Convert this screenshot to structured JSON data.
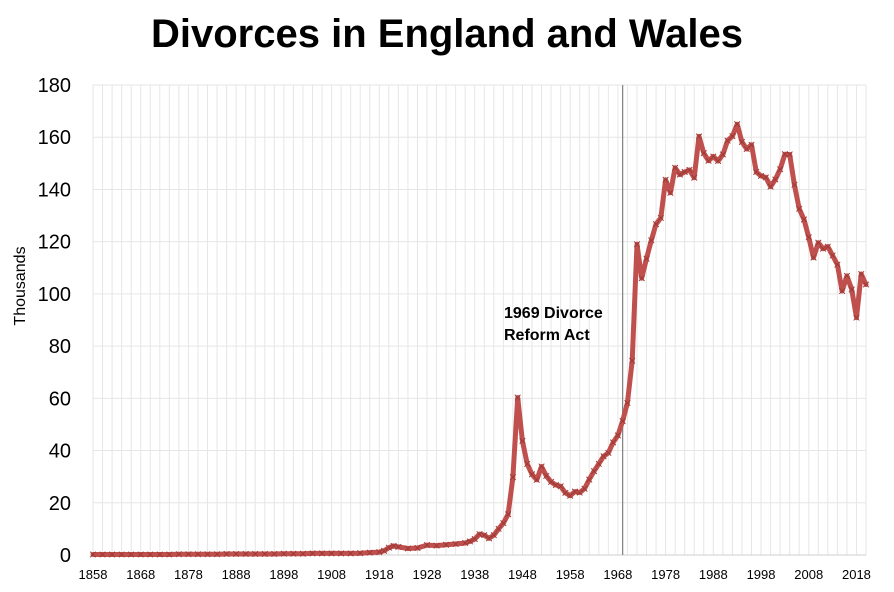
{
  "chart_data": {
    "type": "line",
    "title": "Divorces in England and Wales",
    "ylabel": "Thousands",
    "xlabel": "",
    "xlim": [
      1858,
      2020
    ],
    "ylim": [
      0,
      180
    ],
    "y_ticks": [
      0,
      20,
      40,
      60,
      80,
      100,
      120,
      140,
      160,
      180
    ],
    "x_tick_labels": [
      1858,
      1868,
      1878,
      1888,
      1898,
      1908,
      1918,
      1928,
      1938,
      1948,
      1958,
      1968,
      1978,
      1988,
      1998,
      2008,
      2018
    ],
    "grid": true,
    "line_color": "#c0504d",
    "annotation": {
      "lines": [
        "1969 Divorce",
        "Reform Act"
      ],
      "x": 1969
    },
    "series": [
      {
        "points": [
          [
            1858,
            0.2
          ],
          [
            1860,
            0.2
          ],
          [
            1862,
            0.2
          ],
          [
            1864,
            0.2
          ],
          [
            1866,
            0.2
          ],
          [
            1868,
            0.2
          ],
          [
            1870,
            0.2
          ],
          [
            1872,
            0.2
          ],
          [
            1874,
            0.2
          ],
          [
            1876,
            0.3
          ],
          [
            1878,
            0.3
          ],
          [
            1880,
            0.3
          ],
          [
            1882,
            0.3
          ],
          [
            1884,
            0.3
          ],
          [
            1886,
            0.4
          ],
          [
            1888,
            0.4
          ],
          [
            1890,
            0.4
          ],
          [
            1892,
            0.4
          ],
          [
            1894,
            0.4
          ],
          [
            1896,
            0.4
          ],
          [
            1898,
            0.5
          ],
          [
            1900,
            0.5
          ],
          [
            1902,
            0.5
          ],
          [
            1904,
            0.6
          ],
          [
            1906,
            0.6
          ],
          [
            1908,
            0.6
          ],
          [
            1910,
            0.6
          ],
          [
            1912,
            0.6
          ],
          [
            1914,
            0.7
          ],
          [
            1916,
            0.9
          ],
          [
            1918,
            1.1
          ],
          [
            1919,
            1.6
          ],
          [
            1920,
            2.8
          ],
          [
            1921,
            3.5
          ],
          [
            1922,
            3.1
          ],
          [
            1924,
            2.5
          ],
          [
            1926,
            2.7
          ],
          [
            1928,
            3.8
          ],
          [
            1930,
            3.6
          ],
          [
            1932,
            3.9
          ],
          [
            1934,
            4.2
          ],
          [
            1936,
            4.6
          ],
          [
            1937,
            5.2
          ],
          [
            1938,
            6.1
          ],
          [
            1939,
            8.0
          ],
          [
            1940,
            7.6
          ],
          [
            1941,
            6.4
          ],
          [
            1942,
            7.6
          ],
          [
            1943,
            10.0
          ],
          [
            1944,
            12.2
          ],
          [
            1945,
            15.6
          ],
          [
            1946,
            29.8
          ],
          [
            1947,
            60.3
          ],
          [
            1948,
            43.7
          ],
          [
            1949,
            34.9
          ],
          [
            1950,
            30.9
          ],
          [
            1951,
            28.8
          ],
          [
            1952,
            33.9
          ],
          [
            1953,
            30.3
          ],
          [
            1954,
            28.0
          ],
          [
            1955,
            26.8
          ],
          [
            1956,
            26.3
          ],
          [
            1957,
            23.8
          ],
          [
            1958,
            22.7
          ],
          [
            1959,
            24.3
          ],
          [
            1960,
            23.9
          ],
          [
            1961,
            25.4
          ],
          [
            1962,
            28.9
          ],
          [
            1963,
            32.1
          ],
          [
            1964,
            34.9
          ],
          [
            1965,
            37.8
          ],
          [
            1966,
            39.1
          ],
          [
            1967,
            43.1
          ],
          [
            1968,
            45.8
          ],
          [
            1969,
            51.3
          ],
          [
            1970,
            58.2
          ],
          [
            1971,
            74.4
          ],
          [
            1972,
            119.0
          ],
          [
            1973,
            106.0
          ],
          [
            1974,
            113.5
          ],
          [
            1975,
            120.5
          ],
          [
            1976,
            126.7
          ],
          [
            1977,
            129.1
          ],
          [
            1978,
            143.7
          ],
          [
            1979,
            138.7
          ],
          [
            1980,
            148.3
          ],
          [
            1981,
            145.7
          ],
          [
            1982,
            146.7
          ],
          [
            1983,
            147.5
          ],
          [
            1984,
            144.5
          ],
          [
            1985,
            160.3
          ],
          [
            1986,
            153.9
          ],
          [
            1987,
            151.0
          ],
          [
            1988,
            152.6
          ],
          [
            1989,
            150.9
          ],
          [
            1990,
            153.4
          ],
          [
            1991,
            158.7
          ],
          [
            1992,
            160.4
          ],
          [
            1993,
            165.0
          ],
          [
            1994,
            158.2
          ],
          [
            1995,
            155.5
          ],
          [
            1996,
            157.1
          ],
          [
            1997,
            146.7
          ],
          [
            1998,
            145.2
          ],
          [
            1999,
            144.6
          ],
          [
            2000,
            141.1
          ],
          [
            2001,
            143.8
          ],
          [
            2002,
            147.7
          ],
          [
            2003,
            153.5
          ],
          [
            2004,
            153.4
          ],
          [
            2005,
            141.8
          ],
          [
            2006,
            132.6
          ],
          [
            2007,
            128.5
          ],
          [
            2008,
            121.7
          ],
          [
            2009,
            113.9
          ],
          [
            2010,
            119.6
          ],
          [
            2011,
            117.3
          ],
          [
            2012,
            118.1
          ],
          [
            2013,
            114.7
          ],
          [
            2014,
            111.2
          ],
          [
            2015,
            101.1
          ],
          [
            2016,
            106.9
          ],
          [
            2017,
            101.7
          ],
          [
            2018,
            90.9
          ],
          [
            2019,
            107.6
          ],
          [
            2020,
            103.6
          ]
        ]
      }
    ]
  }
}
